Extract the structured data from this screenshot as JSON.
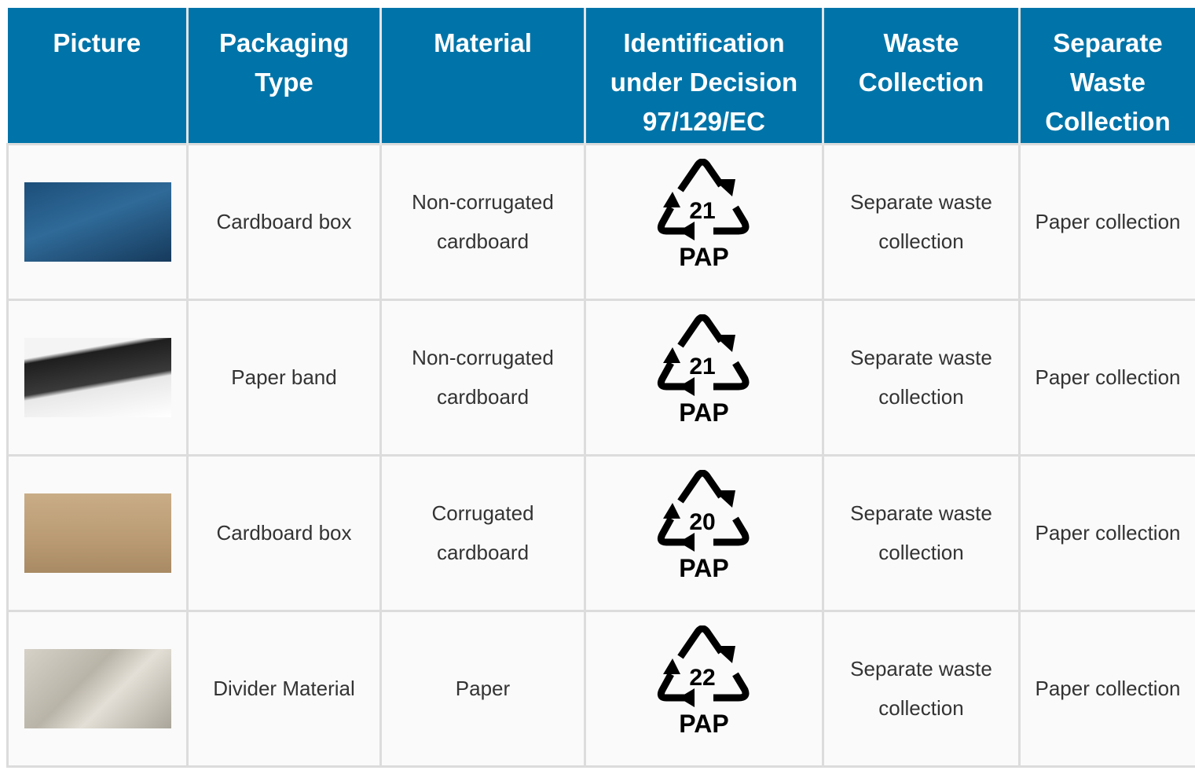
{
  "table": {
    "headers": [
      "Picture",
      "Packaging Type",
      "Material",
      "Identification under Decision 97/129/EC",
      "Waste Collection",
      "Separate Waste Collection"
    ],
    "rows": [
      {
        "packaging": "Cardboard box",
        "material": "Non-corrugated cardboard",
        "code": "21",
        "code_label": "PAP",
        "waste": "Separate waste collection",
        "separate": "Paper collection"
      },
      {
        "packaging": "Paper band",
        "material": "Non-corrugated cardboard",
        "code": "21",
        "code_label": "PAP",
        "waste": "Separate waste collection",
        "separate": "Paper collection"
      },
      {
        "packaging": "Cardboard box",
        "material": "Corrugated cardboard",
        "code": "20",
        "code_label": "PAP",
        "waste": "Separate waste collection",
        "separate": "Paper collection"
      },
      {
        "packaging": "Divider Material",
        "material": "Paper",
        "code": "22",
        "code_label": "PAP",
        "waste": "Separate waste collection",
        "separate": "Paper collection"
      }
    ]
  }
}
